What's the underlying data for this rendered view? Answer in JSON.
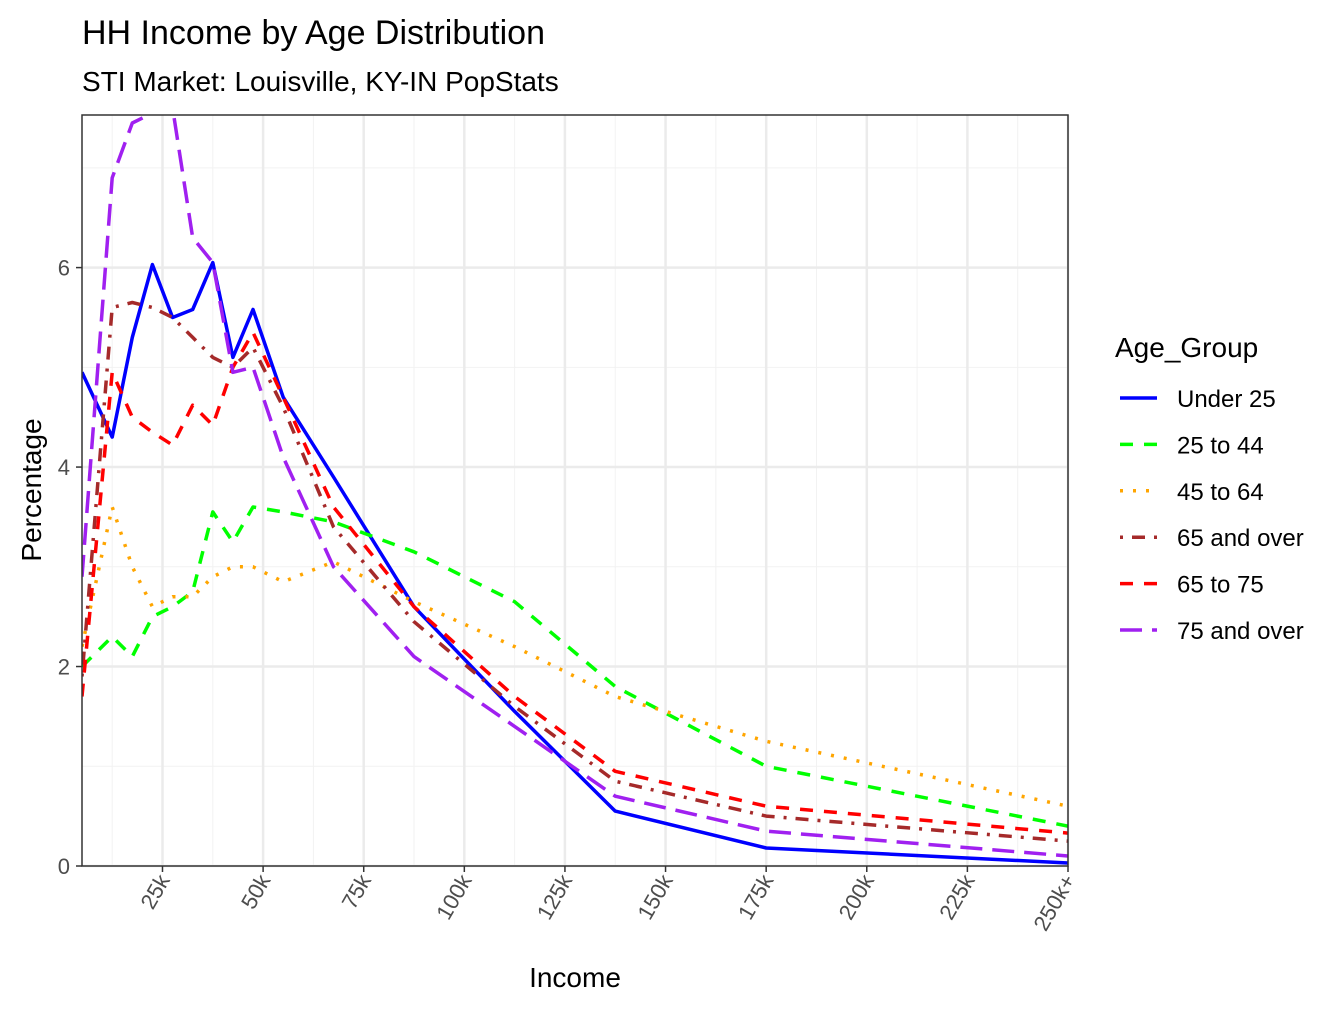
{
  "chart_data": {
    "type": "line",
    "title": "HH Income by Age Distribution",
    "subtitle": "STI Market: Louisville, KY-IN PopStats",
    "xlabel": "Income",
    "ylabel": "Percentage",
    "x_unit": "k",
    "x": [
      5,
      12.5,
      17.5,
      22.5,
      27.5,
      32.5,
      37.5,
      42.5,
      47.5,
      55,
      67.5,
      87.5,
      112.5,
      137.5,
      175,
      250
    ],
    "xlim": [
      5,
      250
    ],
    "ylim": [
      0,
      7.53
    ],
    "x_ticks": [
      25,
      50,
      75,
      100,
      125,
      150,
      175,
      200,
      225,
      250
    ],
    "x_tick_labels": [
      "25k",
      "50k",
      "75k",
      "100k",
      "125k",
      "150k",
      "175k",
      "200k",
      "225k",
      "250k+"
    ],
    "y_ticks": [
      0,
      2,
      4,
      6
    ],
    "y_tick_labels": [
      "0",
      "2",
      "4",
      "6"
    ],
    "grid": true,
    "legend": {
      "title": "Age_Group",
      "position": "right"
    },
    "series": [
      {
        "name": "Under 25",
        "color": "#0000FF",
        "linetype": "solid",
        "values": [
          4.95,
          4.3,
          5.3,
          6.03,
          5.5,
          5.58,
          6.05,
          5.1,
          5.58,
          4.7,
          3.9,
          2.6,
          1.55,
          0.55,
          0.18,
          0.03
        ]
      },
      {
        "name": "25 to 44",
        "color": "#00FF00",
        "linetype": "dashed",
        "values": [
          2.0,
          2.3,
          2.1,
          2.5,
          2.6,
          2.75,
          3.55,
          3.25,
          3.6,
          3.55,
          3.45,
          3.15,
          2.65,
          1.8,
          1.0,
          0.4
        ]
      },
      {
        "name": "45 to 64",
        "color": "#FFA500",
        "linetype": "dotted",
        "values": [
          2.2,
          3.6,
          3.0,
          2.6,
          2.7,
          2.7,
          2.9,
          3.0,
          3.0,
          2.85,
          3.05,
          2.65,
          2.2,
          1.7,
          1.25,
          0.6
        ]
      },
      {
        "name": "65 and over",
        "color": "#A52A2A",
        "linetype": "dotdash",
        "values": [
          1.9,
          5.6,
          5.65,
          5.6,
          5.5,
          5.3,
          5.1,
          5.0,
          5.2,
          4.6,
          3.4,
          2.45,
          1.6,
          0.85,
          0.5,
          0.25
        ]
      },
      {
        "name": "65 to 75",
        "color": "#FF0000",
        "linetype": "dashed",
        "values": [
          1.7,
          4.95,
          4.5,
          4.35,
          4.22,
          4.62,
          4.42,
          5.0,
          5.35,
          4.7,
          3.6,
          2.6,
          1.7,
          0.95,
          0.6,
          0.33
        ]
      },
      {
        "name": "75 and over",
        "color": "#A020F0",
        "linetype": "longdash",
        "values": [
          2.9,
          6.9,
          7.45,
          7.55,
          7.6,
          6.3,
          6.05,
          4.95,
          5.0,
          4.1,
          3.0,
          2.1,
          1.4,
          0.7,
          0.35,
          0.1
        ]
      }
    ]
  }
}
